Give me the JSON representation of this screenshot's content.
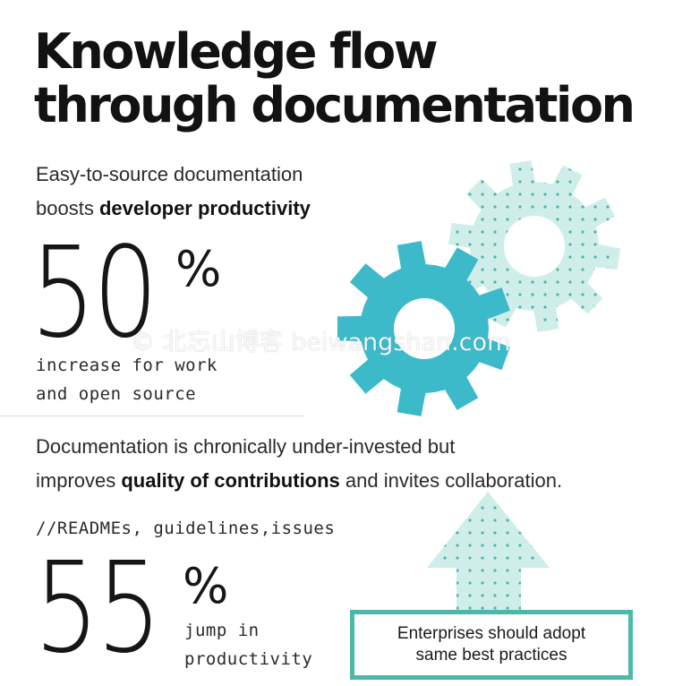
{
  "title": {
    "line1": "Knowledge flow",
    "line2": "through documentation"
  },
  "intro": {
    "line1": "Easy-to-source documentation",
    "line2_prefix": "boosts ",
    "line2_bold": "developer productivity"
  },
  "stat1": {
    "value": "50",
    "unit": "%",
    "caption_line1": "increase for work",
    "caption_line2": "and open source"
  },
  "body": {
    "line1": "Documentation is chronically under-invested but",
    "line2_prefix": "improves ",
    "line2_bold": "quality of contributions",
    "line2_suffix": " and invites collaboration."
  },
  "tags": "//READMEs, guidelines,issues",
  "stat2": {
    "value": "55",
    "unit": "%",
    "caption_line1": "jump in",
    "caption_line2": "productivity"
  },
  "callout": {
    "line1": "Enterprises should adopt",
    "line2": "same best practices"
  },
  "watermark": "© 北忘山博客 beiwangshan.com",
  "colors": {
    "gear_solid": "#3dbac9",
    "gear_dotted": "#cfeeea",
    "dots": "#4fb4a9",
    "arrow": "#cfeeea",
    "callout_border": "#4bb8aa"
  }
}
